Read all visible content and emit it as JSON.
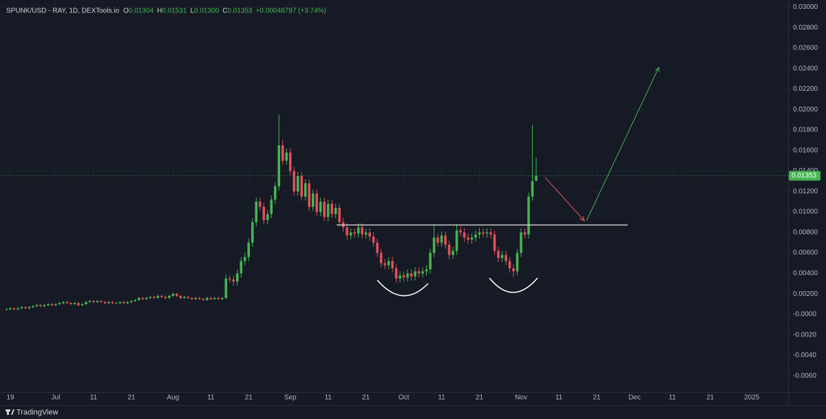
{
  "chart_data": {
    "type": "candlestick",
    "legend": {
      "symbol": "SPUNK/USD - RAY, 1D, DEXTools.io",
      "labels": [
        "O",
        "H",
        "L",
        "C"
      ],
      "values": [
        "0.01304",
        "0.01531",
        "0.01300",
        "0.01353"
      ],
      "change": "+0.00048797 (+3.74%)"
    },
    "footer": "TradingView",
    "up_color": "#46b553",
    "down_color": "#e2505a",
    "grid": true,
    "open": [
      0.0005,
      0.0005,
      0.0006,
      0.0005,
      0.0006,
      0.0007,
      0.0006,
      0.0007,
      0.0008,
      0.0009,
      0.0008,
      0.0009,
      0.001,
      0.0009,
      0.001,
      0.0011,
      0.0012,
      0.0011,
      0.001,
      0.0011,
      0.0009,
      0.001,
      0.0012,
      0.0013,
      0.0012,
      0.0013,
      0.0012,
      0.0011,
      0.0012,
      0.0011,
      0.0011,
      0.0012,
      0.0011,
      0.0012,
      0.0013,
      0.0014,
      0.0016,
      0.0015,
      0.0016,
      0.0017,
      0.0016,
      0.0018,
      0.0017,
      0.0016,
      0.0018,
      0.002,
      0.0018,
      0.0016,
      0.0017,
      0.0016,
      0.0015,
      0.0016,
      0.0015,
      0.0014,
      0.0016,
      0.0015,
      0.0016,
      0.0015,
      0.0016,
      0.0035,
      0.0034,
      0.0032,
      0.004,
      0.0052,
      0.0056,
      0.007,
      0.009,
      0.011,
      0.0105,
      0.0092,
      0.0098,
      0.0112,
      0.0125,
      0.0165,
      0.015,
      0.0158,
      0.014,
      0.012,
      0.0135,
      0.0115,
      0.0128,
      0.0105,
      0.0118,
      0.01,
      0.011,
      0.0095,
      0.0108,
      0.0098,
      0.0104,
      0.009,
      0.0085,
      0.0077,
      0.008,
      0.0079,
      0.0085,
      0.0078,
      0.008,
      0.0076,
      0.007,
      0.006,
      0.005,
      0.0048,
      0.0052,
      0.0045,
      0.0035,
      0.0038,
      0.0036,
      0.004,
      0.0037,
      0.0042,
      0.004,
      0.0042,
      0.0044,
      0.006,
      0.0075,
      0.007,
      0.0077,
      0.0068,
      0.0058,
      0.0062,
      0.0082,
      0.008,
      0.0075,
      0.0073,
      0.0075,
      0.0078,
      0.008,
      0.0079,
      0.008,
      0.0078,
      0.0062,
      0.0055,
      0.0058,
      0.0052,
      0.0045,
      0.0042,
      0.006,
      0.008,
      0.0078,
      0.0115,
      0.01304
    ],
    "high": [
      0.0006,
      0.0007,
      0.0007,
      0.0007,
      0.0008,
      0.0008,
      0.0008,
      0.0009,
      0.001,
      0.001,
      0.001,
      0.0011,
      0.0011,
      0.0011,
      0.0012,
      0.0013,
      0.0013,
      0.0012,
      0.0012,
      0.0012,
      0.0011,
      0.0013,
      0.0014,
      0.0014,
      0.0014,
      0.0014,
      0.0013,
      0.0013,
      0.0013,
      0.0012,
      0.0013,
      0.0013,
      0.0013,
      0.0014,
      0.0015,
      0.0017,
      0.0017,
      0.0017,
      0.0018,
      0.0018,
      0.0019,
      0.0019,
      0.0018,
      0.0019,
      0.0021,
      0.0021,
      0.0019,
      0.0018,
      0.0018,
      0.0017,
      0.0017,
      0.0017,
      0.0016,
      0.0017,
      0.0017,
      0.0017,
      0.0017,
      0.0017,
      0.0039,
      0.0038,
      0.0038,
      0.0044,
      0.0056,
      0.006,
      0.0074,
      0.0094,
      0.0114,
      0.0114,
      0.0109,
      0.0102,
      0.0116,
      0.0129,
      0.0195,
      0.017,
      0.0162,
      0.0162,
      0.0144,
      0.0139,
      0.0139,
      0.0132,
      0.0132,
      0.0122,
      0.0122,
      0.0114,
      0.0114,
      0.0112,
      0.0112,
      0.0108,
      0.0108,
      0.0094,
      0.0089,
      0.0084,
      0.0084,
      0.0089,
      0.0089,
      0.0084,
      0.0084,
      0.008,
      0.0074,
      0.0064,
      0.0054,
      0.0056,
      0.0056,
      0.0049,
      0.0042,
      0.0042,
      0.0044,
      0.0044,
      0.0046,
      0.0046,
      0.0046,
      0.0048,
      0.0064,
      0.0088,
      0.0079,
      0.0081,
      0.0081,
      0.0072,
      0.0066,
      0.0088,
      0.0086,
      0.0084,
      0.0079,
      0.0079,
      0.0082,
      0.0084,
      0.0084,
      0.0084,
      0.0084,
      0.0082,
      0.0066,
      0.0062,
      0.0062,
      0.0056,
      0.0049,
      0.0064,
      0.0084,
      0.0084,
      0.0119,
      0.0185,
      0.01531
    ],
    "low": [
      0.0004,
      0.0004,
      0.0004,
      0.0004,
      0.0005,
      0.0005,
      0.0005,
      0.0006,
      0.0007,
      0.0007,
      0.0007,
      0.0008,
      0.0008,
      0.0008,
      0.0009,
      0.001,
      0.001,
      0.0009,
      0.0009,
      0.0008,
      0.0008,
      0.0009,
      0.0011,
      0.0011,
      0.0011,
      0.0011,
      0.001,
      0.001,
      0.001,
      0.001,
      0.001,
      0.001,
      0.001,
      0.0011,
      0.0012,
      0.0013,
      0.0014,
      0.0014,
      0.0015,
      0.0015,
      0.0015,
      0.0016,
      0.0015,
      0.0015,
      0.0017,
      0.0017,
      0.0015,
      0.0015,
      0.0015,
      0.0014,
      0.0014,
      0.0014,
      0.0013,
      0.0013,
      0.0014,
      0.0014,
      0.0014,
      0.0014,
      0.0015,
      0.0031,
      0.0028,
      0.0028,
      0.0036,
      0.0048,
      0.0052,
      0.0066,
      0.0086,
      0.0101,
      0.0088,
      0.0088,
      0.0094,
      0.0108,
      0.0121,
      0.0146,
      0.0146,
      0.0136,
      0.0116,
      0.0116,
      0.0111,
      0.0111,
      0.0101,
      0.0101,
      0.0096,
      0.0096,
      0.0091,
      0.0091,
      0.0094,
      0.0094,
      0.0086,
      0.0081,
      0.0073,
      0.0073,
      0.0075,
      0.0075,
      0.0074,
      0.0074,
      0.0072,
      0.0066,
      0.0056,
      0.0046,
      0.0044,
      0.0044,
      0.0041,
      0.0031,
      0.0031,
      0.0032,
      0.0032,
      0.0033,
      0.0033,
      0.0036,
      0.0036,
      0.0038,
      0.004,
      0.0056,
      0.0066,
      0.0066,
      0.0064,
      0.0054,
      0.0054,
      0.0058,
      0.0076,
      0.0071,
      0.0069,
      0.0069,
      0.0071,
      0.0074,
      0.0075,
      0.0075,
      0.0074,
      0.0058,
      0.0051,
      0.0051,
      0.0048,
      0.0041,
      0.0036,
      0.0038,
      0.0056,
      0.0074,
      0.0074,
      0.0111,
      0.013
    ],
    "close": [
      0.0005,
      0.0006,
      0.0005,
      0.0006,
      0.0007,
      0.0006,
      0.0007,
      0.0008,
      0.0009,
      0.0008,
      0.0009,
      0.001,
      0.0009,
      0.001,
      0.0011,
      0.0012,
      0.0011,
      0.001,
      0.0011,
      0.0009,
      0.001,
      0.0012,
      0.0013,
      0.0012,
      0.0013,
      0.0012,
      0.0011,
      0.0012,
      0.0011,
      0.0011,
      0.0012,
      0.0011,
      0.0012,
      0.0013,
      0.0014,
      0.0016,
      0.0015,
      0.0016,
      0.0017,
      0.0016,
      0.0018,
      0.0017,
      0.0016,
      0.0018,
      0.002,
      0.0018,
      0.0016,
      0.0017,
      0.0016,
      0.0015,
      0.0016,
      0.0015,
      0.0014,
      0.0016,
      0.0015,
      0.0016,
      0.0015,
      0.0016,
      0.0035,
      0.0034,
      0.0032,
      0.004,
      0.0052,
      0.0056,
      0.007,
      0.009,
      0.011,
      0.0105,
      0.0092,
      0.0098,
      0.0112,
      0.0125,
      0.0165,
      0.015,
      0.0158,
      0.014,
      0.012,
      0.0135,
      0.0115,
      0.0128,
      0.0105,
      0.0118,
      0.01,
      0.011,
      0.0095,
      0.0108,
      0.0098,
      0.0104,
      0.009,
      0.0085,
      0.0077,
      0.008,
      0.0079,
      0.0085,
      0.0078,
      0.008,
      0.0076,
      0.007,
      0.006,
      0.005,
      0.0048,
      0.0052,
      0.0045,
      0.0035,
      0.0038,
      0.0036,
      0.004,
      0.0037,
      0.0042,
      0.004,
      0.0042,
      0.0044,
      0.006,
      0.0075,
      0.007,
      0.0077,
      0.0068,
      0.0058,
      0.0062,
      0.0082,
      0.008,
      0.0075,
      0.0073,
      0.0075,
      0.0078,
      0.008,
      0.0079,
      0.008,
      0.0078,
      0.0062,
      0.0055,
      0.0058,
      0.0052,
      0.0045,
      0.0042,
      0.006,
      0.008,
      0.0078,
      0.0115,
      0.013,
      0.01353
    ],
    "xlim": [
      -1.73,
      206.6
    ],
    "xticks": [
      {
        "value": 1,
        "label": "19"
      },
      {
        "value": 13,
        "label": "Jul"
      },
      {
        "value": 23,
        "label": "11"
      },
      {
        "value": 33,
        "label": "21"
      },
      {
        "value": 44,
        "label": "Aug"
      },
      {
        "value": 54,
        "label": "11"
      },
      {
        "value": 64,
        "label": "21"
      },
      {
        "value": 75,
        "label": "Sep"
      },
      {
        "value": 85,
        "label": "11"
      },
      {
        "value": 95,
        "label": "21"
      },
      {
        "value": 105,
        "label": "Oct"
      },
      {
        "value": 115,
        "label": "11"
      },
      {
        "value": 125,
        "label": "21"
      },
      {
        "value": 136,
        "label": "Nov"
      },
      {
        "value": 146,
        "label": "11"
      },
      {
        "value": 156,
        "label": "21"
      },
      {
        "value": 166,
        "label": "Dec"
      },
      {
        "value": 176,
        "label": "11"
      },
      {
        "value": 186,
        "label": "21"
      },
      {
        "value": 197,
        "label": "2025"
      }
    ],
    "ylim": [
      -0.0076,
      0.0307
    ],
    "yticks": [
      {
        "value": 0.03,
        "label": "0.03000"
      },
      {
        "value": 0.028,
        "label": "0.02800"
      },
      {
        "value": 0.026,
        "label": "0.02600"
      },
      {
        "value": 0.024,
        "label": "0.02400"
      },
      {
        "value": 0.022,
        "label": "0.02200"
      },
      {
        "value": 0.02,
        "label": "0.02000"
      },
      {
        "value": 0.018,
        "label": "0.01800"
      },
      {
        "value": 0.016,
        "label": "0.01600"
      },
      {
        "value": 0.014,
        "label": "0.01400"
      },
      {
        "value": 0.012,
        "label": "0.01200"
      },
      {
        "value": 0.01,
        "label": "0.01000"
      },
      {
        "value": 0.008,
        "label": "0.00800"
      },
      {
        "value": 0.006,
        "label": "0.00600"
      },
      {
        "value": 0.004,
        "label": "0.00400"
      },
      {
        "value": 0.002,
        "label": "0.00200"
      },
      {
        "value": 0,
        "label": "-0.0000"
      },
      {
        "value": -0.002,
        "label": "-0.0020"
      },
      {
        "value": -0.004,
        "label": "-0.0040"
      },
      {
        "value": -0.006,
        "label": "-0.0060"
      }
    ]
  }
}
